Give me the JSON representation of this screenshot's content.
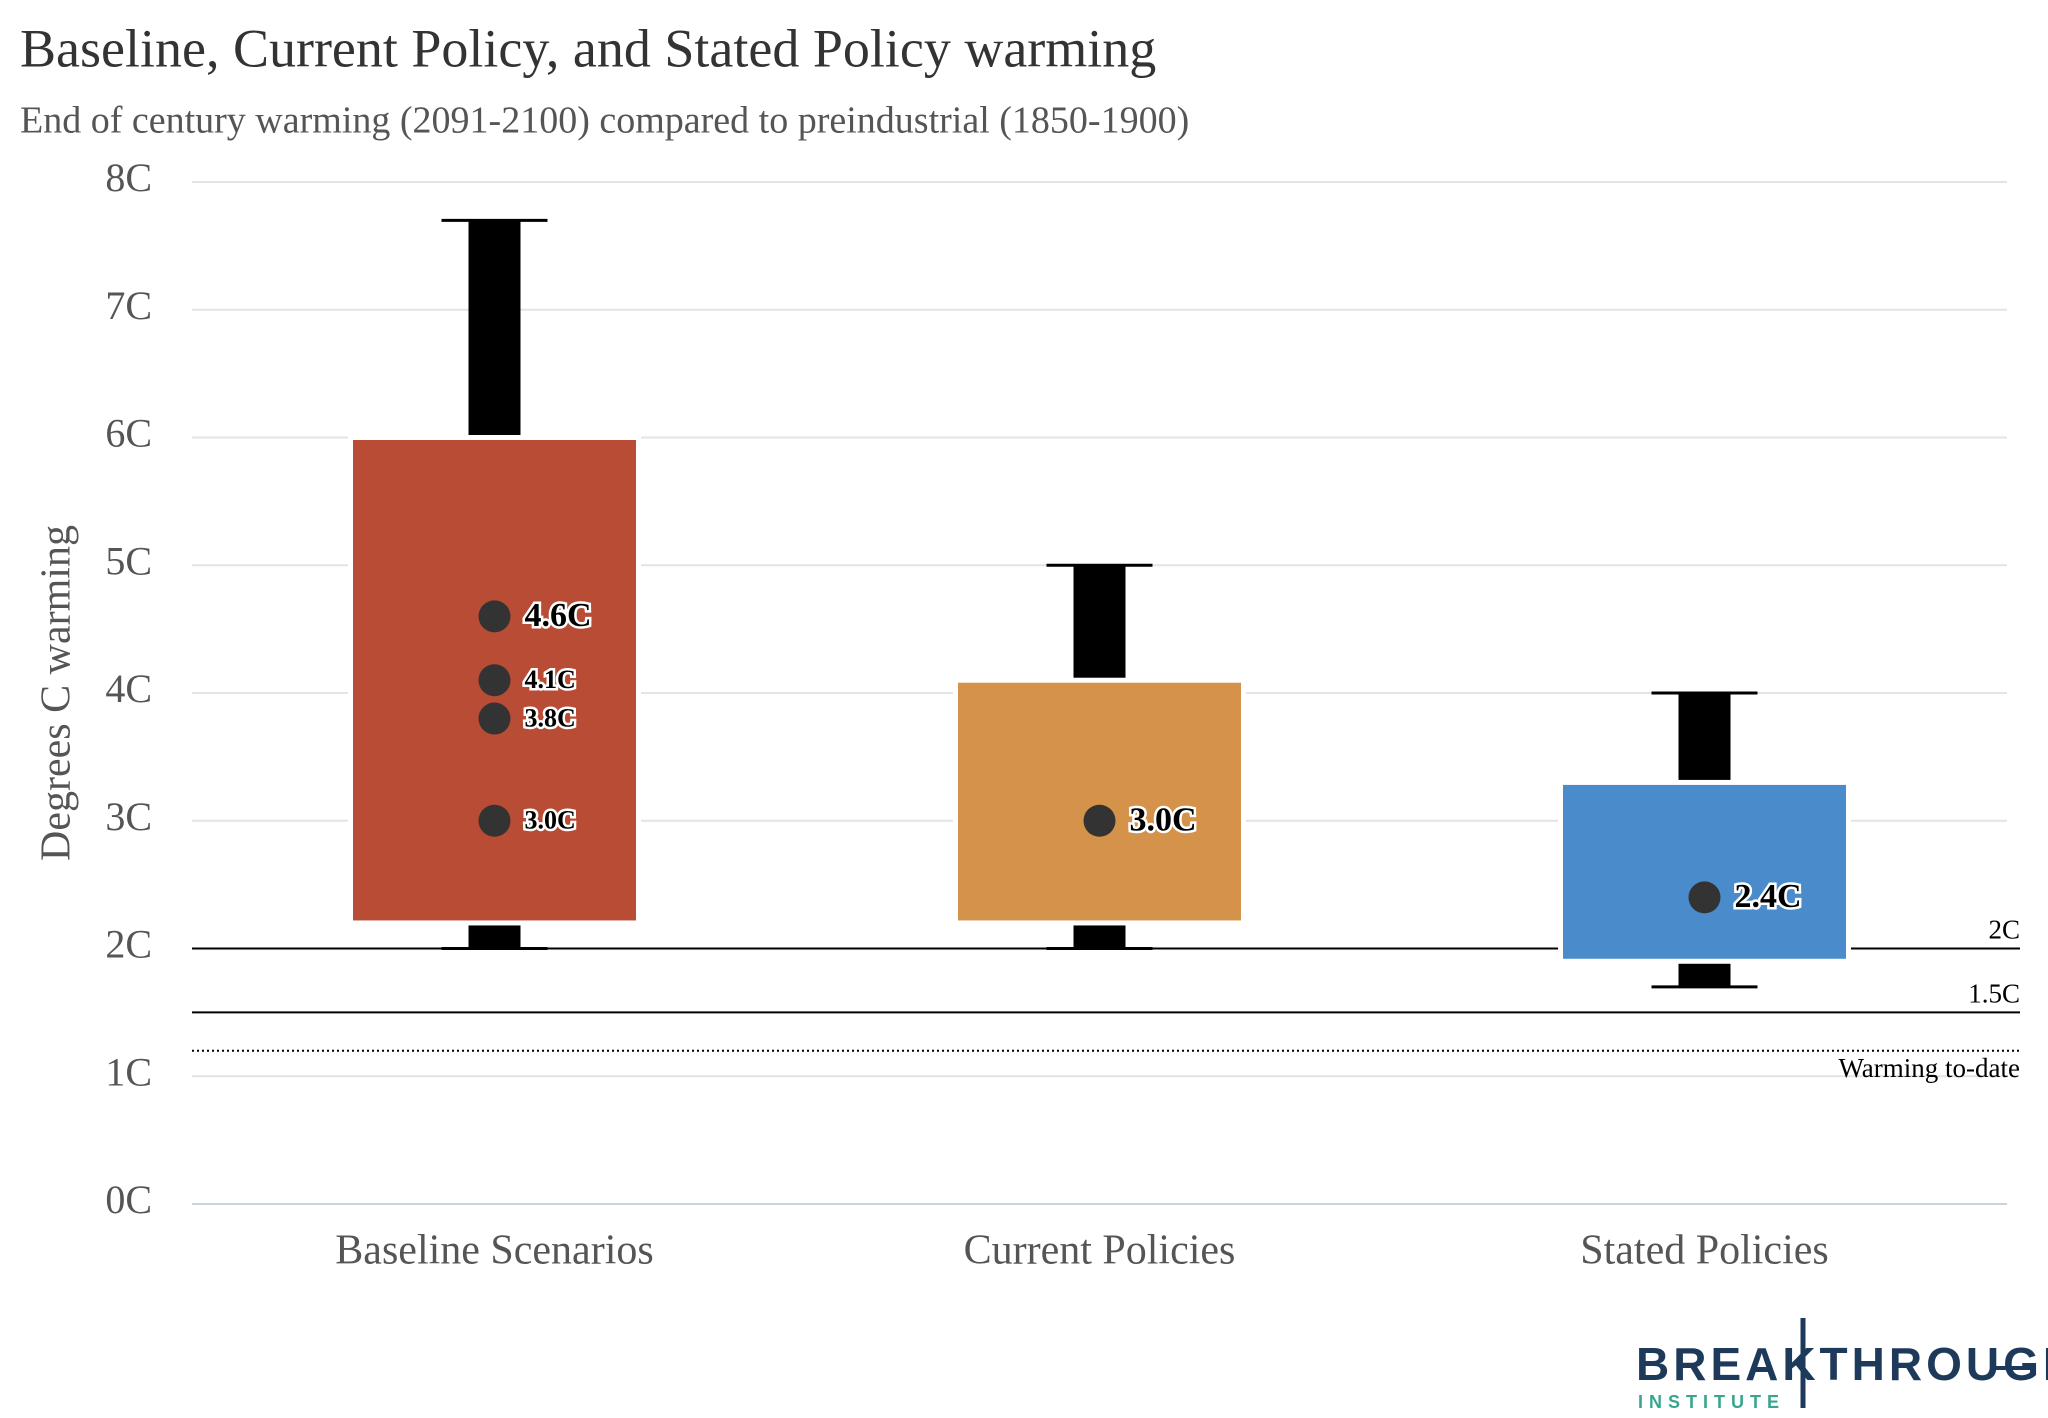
{
  "chart_data": {
    "type": "box",
    "title": "Baseline, Current Policy, and Stated Policy warming",
    "subtitle": "End of century warming (2091-2100) compared to preindustrial (1850-1900)",
    "y_label": "Degrees C warming",
    "categories": [
      "Baseline Scenarios",
      "Current Policies",
      "Stated Policies"
    ],
    "boxes": [
      {
        "color": "#b84c35",
        "whisker_low": 2.0,
        "box_low": 2.2,
        "box_high": 6.0,
        "whisker_high": 7.7,
        "values": [
          4.6,
          4.1,
          3.8,
          3.0
        ],
        "value_labels": [
          "4.6C",
          "4.1C",
          "3.8C",
          "3.0C"
        ]
      },
      {
        "color": "#d4924a",
        "whisker_low": 2.0,
        "box_low": 2.2,
        "box_high": 4.1,
        "whisker_high": 5.0,
        "values": [
          3.0
        ],
        "value_labels": [
          "3.0C"
        ]
      },
      {
        "color": "#4a8ccb",
        "whisker_low": 1.7,
        "box_low": 1.9,
        "box_high": 3.3,
        "whisker_high": 4.0,
        "values": [
          2.4
        ],
        "value_labels": [
          "2.4C"
        ]
      }
    ],
    "reference_lines": [
      {
        "value": 2,
        "label": "2C",
        "style": "solid"
      },
      {
        "value": 1.5,
        "label": "1.5C",
        "style": "solid"
      },
      {
        "value": 1.2,
        "label": "Warming to-date",
        "style": "dotted"
      }
    ],
    "ylim": [
      0,
      8
    ],
    "yticks": [
      {
        "value": 0,
        "label": "0C"
      },
      {
        "value": 1,
        "label": "1C"
      },
      {
        "value": 2,
        "label": "2C"
      },
      {
        "value": 3,
        "label": "3C"
      },
      {
        "value": 4,
        "label": "4C"
      },
      {
        "value": 5,
        "label": "5C"
      },
      {
        "value": 6,
        "label": "6C"
      },
      {
        "value": 7,
        "label": "7C"
      },
      {
        "value": 8,
        "label": "8C"
      }
    ],
    "grid": true
  },
  "logo": {
    "name": "BREAKTHROUGH",
    "subname": "INSTITUTE"
  }
}
